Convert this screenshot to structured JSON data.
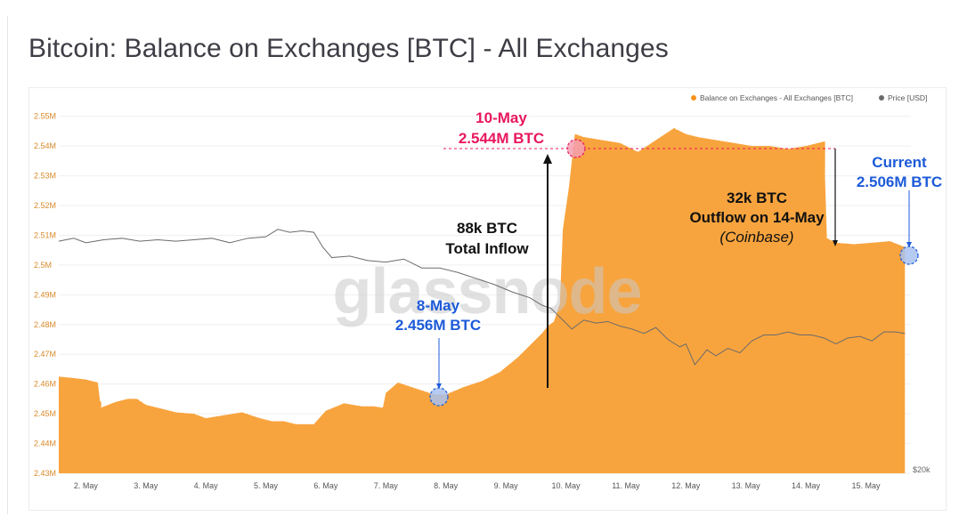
{
  "title": "Bitcoin: Balance on Exchanges [BTC] - All Exchanges",
  "watermark": "glassnode",
  "legend": {
    "balance_label": "Balance on Exchanges - All Exchanges [BTC]",
    "price_label": "Price [USD]"
  },
  "colors": {
    "balance": "#f7931a",
    "balance_fill": "#f8a43e",
    "price": "#6b6b6b",
    "axis_text": "#d98a2b",
    "annotation_red": "#e8175d",
    "annotation_blue": "#1c5bd9"
  },
  "annotations": {
    "peak_date": "10-May",
    "peak_value": "2.544M BTC",
    "low_date": "8-May",
    "low_value": "2.456M BTC",
    "inflow_line1": "88k BTC",
    "inflow_line2": "Total Inflow",
    "outflow_line1": "32k BTC",
    "outflow_line2": "Outflow on 14-May",
    "outflow_line3": "(Coinbase)",
    "current_label": "Current",
    "current_value": "2.506M BTC"
  },
  "chart_data": {
    "type": "area",
    "title": "Bitcoin: Balance on Exchanges [BTC] - All Exchanges",
    "y_ticks": [
      "2.43M",
      "2.44M",
      "2.45M",
      "2.46M",
      "2.47M",
      "2.48M",
      "2.49M",
      "2.5M",
      "2.51M",
      "2.52M",
      "2.53M",
      "2.54M",
      "2.55M"
    ],
    "y_tick_values": [
      2.43,
      2.44,
      2.45,
      2.46,
      2.47,
      2.48,
      2.49,
      2.5,
      2.51,
      2.52,
      2.53,
      2.54,
      2.55
    ],
    "ylim": [
      2.43,
      2.55
    ],
    "right_axis_label": "$20k",
    "x_ticks": [
      "2. May",
      "3. May",
      "4. May",
      "5. May",
      "6. May",
      "7. May",
      "8. May",
      "9. May",
      "10. May",
      "11. May",
      "12. May",
      "13. May",
      "14. May",
      "15. May"
    ],
    "x_tick_values": [
      2,
      3,
      4,
      5,
      6,
      7,
      8,
      9,
      10,
      11,
      12,
      13,
      14,
      15
    ],
    "xlim": [
      1.55,
      15.75
    ],
    "grid": true,
    "legend_position": "top-right",
    "series": [
      {
        "name": "Balance on Exchanges - All Exchanges [BTC]",
        "unit": "M BTC",
        "x": [
          1.55,
          1.8,
          2.0,
          2.2,
          2.25,
          2.5,
          2.7,
          2.85,
          3.0,
          3.2,
          3.5,
          3.8,
          4.0,
          4.3,
          4.6,
          4.9,
          5.1,
          5.3,
          5.5,
          5.8,
          6.0,
          6.3,
          6.6,
          6.8,
          6.95,
          7.0,
          7.2,
          7.5,
          7.8,
          8.0,
          8.3,
          8.6,
          8.9,
          9.2,
          9.45,
          9.6,
          9.7,
          9.8,
          9.9,
          9.95,
          10.05,
          10.15,
          10.3,
          10.6,
          10.9,
          11.2,
          11.5,
          11.8,
          12.0,
          12.2,
          12.5,
          12.8,
          13.1,
          13.4,
          13.7,
          14.0,
          14.3,
          14.35,
          14.5,
          14.8,
          15.1,
          15.4,
          15.65
        ],
        "values": [
          2.4625,
          2.462,
          2.4615,
          2.4605,
          2.452,
          2.454,
          2.455,
          2.455,
          2.453,
          2.452,
          2.4505,
          2.45,
          2.4485,
          2.4495,
          2.4505,
          2.4485,
          2.4475,
          2.4475,
          2.4465,
          2.4465,
          2.451,
          2.4535,
          2.4525,
          2.4525,
          2.452,
          2.457,
          2.4605,
          2.4585,
          2.4565,
          2.4565,
          2.459,
          2.461,
          2.464,
          2.469,
          2.474,
          2.477,
          2.4795,
          2.481,
          2.487,
          2.512,
          2.526,
          2.544,
          2.543,
          2.542,
          2.541,
          2.538,
          2.542,
          2.546,
          2.544,
          2.543,
          2.542,
          2.541,
          2.54,
          2.54,
          2.539,
          2.54,
          2.5415,
          2.509,
          2.5075,
          2.507,
          2.5075,
          2.508,
          2.506
        ]
      },
      {
        "name": "Price [USD]",
        "unit": "relative",
        "x": [
          1.55,
          1.8,
          2.0,
          2.3,
          2.6,
          2.9,
          3.2,
          3.5,
          3.8,
          4.1,
          4.4,
          4.7,
          5.0,
          5.2,
          5.4,
          5.6,
          5.8,
          5.95,
          6.1,
          6.4,
          6.7,
          7.0,
          7.3,
          7.6,
          7.9,
          8.2,
          8.5,
          8.8,
          9.1,
          9.4,
          9.6,
          9.75,
          9.9,
          10.1,
          10.3,
          10.5,
          10.7,
          10.9,
          11.1,
          11.3,
          11.5,
          11.7,
          11.9,
          12.0,
          12.15,
          12.35,
          12.5,
          12.7,
          12.9,
          13.1,
          13.3,
          13.5,
          13.7,
          13.9,
          14.1,
          14.3,
          14.5,
          14.7,
          14.9,
          15.1,
          15.3,
          15.5,
          15.65
        ],
        "values": [
          0.508,
          0.509,
          0.5075,
          0.5085,
          0.509,
          0.508,
          0.5085,
          0.508,
          0.5085,
          0.509,
          0.5075,
          0.509,
          0.5095,
          0.512,
          0.511,
          0.5115,
          0.511,
          0.506,
          0.5025,
          0.503,
          0.5015,
          0.501,
          0.502,
          0.499,
          0.499,
          0.4975,
          0.4955,
          0.4935,
          0.491,
          0.489,
          0.4865,
          0.4855,
          0.4825,
          0.4785,
          0.4815,
          0.4805,
          0.481,
          0.4795,
          0.4785,
          0.477,
          0.479,
          0.475,
          0.4725,
          0.4735,
          0.4665,
          0.4715,
          0.4695,
          0.472,
          0.4705,
          0.4745,
          0.4765,
          0.4765,
          0.4775,
          0.4765,
          0.4765,
          0.4755,
          0.4735,
          0.4755,
          0.476,
          0.4745,
          0.4775,
          0.4775,
          0.477
        ]
      }
    ]
  }
}
